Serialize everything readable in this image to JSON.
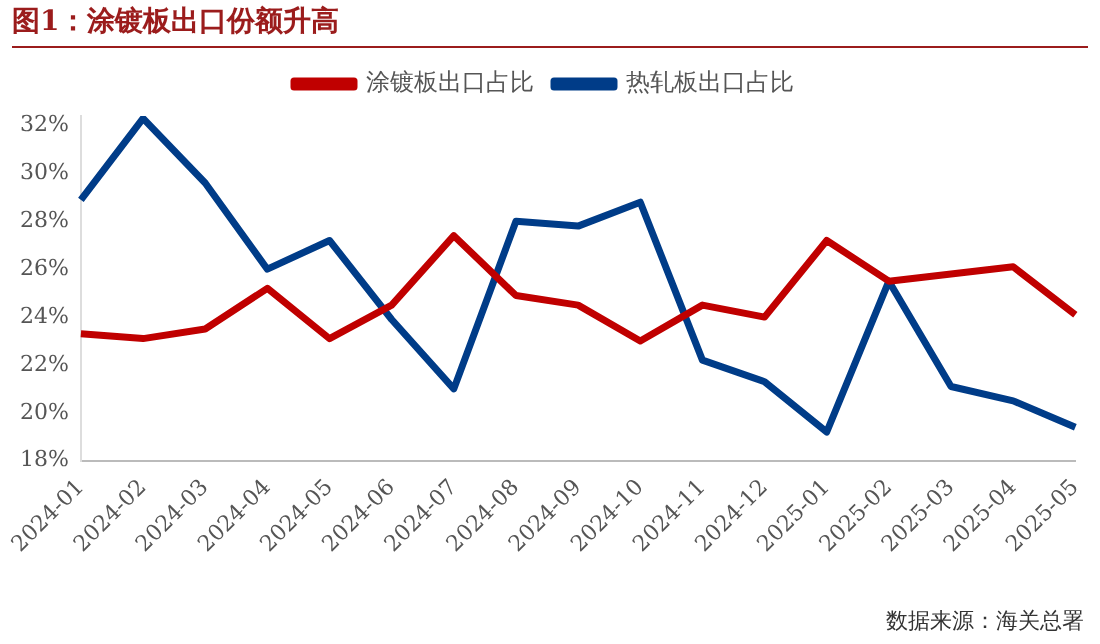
{
  "chart_data": {
    "type": "line",
    "title": "图1：涂镀板出口份额升高",
    "categories": [
      "2024-01",
      "2024-02",
      "2024-03",
      "2024-04",
      "2024-05",
      "2024-06",
      "2024-07",
      "2024-08",
      "2024-09",
      "2024-10",
      "2024-11",
      "2024-12",
      "2025-01",
      "2025-02",
      "2025-03",
      "2025-04",
      "2025-05"
    ],
    "series": [
      {
        "name": "涂镀板出口占比",
        "color": "#c00000",
        "values": [
          23.3,
          23.1,
          23.5,
          25.2,
          23.1,
          24.5,
          27.4,
          24.9,
          24.5,
          23.0,
          24.5,
          24.0,
          27.2,
          25.5,
          25.8,
          26.1,
          24.1
        ]
      },
      {
        "name": "热轧板出口占比",
        "color": "#003c88",
        "values": [
          28.9,
          32.3,
          29.6,
          26.0,
          27.2,
          23.9,
          21.0,
          28.0,
          27.8,
          28.8,
          22.2,
          21.3,
          19.2,
          25.5,
          21.1,
          20.5,
          19.4
        ]
      }
    ],
    "ylim": [
      18,
      32.4
    ],
    "yticks": [
      {
        "value": 18,
        "label": "18%"
      },
      {
        "value": 20,
        "label": "20%"
      },
      {
        "value": 22,
        "label": "22%"
      },
      {
        "value": 24,
        "label": "24%"
      },
      {
        "value": 26,
        "label": "26%"
      },
      {
        "value": 28,
        "label": "28%"
      },
      {
        "value": 30,
        "label": "30%"
      },
      {
        "value": 32,
        "label": "32%"
      }
    ],
    "grid": false,
    "legend": "top",
    "marker": "none",
    "line_style": "solid",
    "annotations": [
      "数据来源：海关总署"
    ]
  }
}
